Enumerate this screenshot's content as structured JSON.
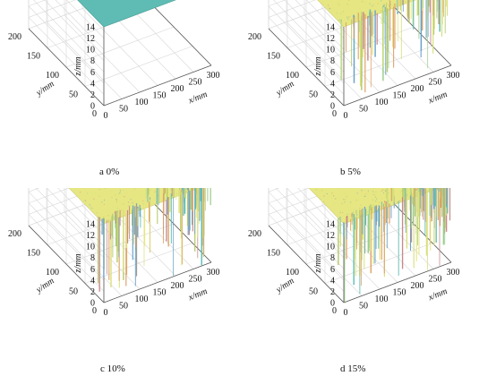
{
  "figure": {
    "panels": [
      {
        "caption": "a 0%"
      },
      {
        "caption": "b 5%"
      },
      {
        "caption": "c 10%"
      },
      {
        "caption": "d 15%"
      }
    ]
  },
  "chart_data": [
    {
      "type": "surface3d",
      "porosity_percent": 0,
      "xlabel": "x/mm",
      "ylabel": "y/mm",
      "zlabel": "z/mm",
      "xlim": [
        0,
        300
      ],
      "ylim": [
        0,
        200
      ],
      "zlim": [
        0,
        14
      ],
      "xticks": [
        "0",
        "50",
        "100",
        "150",
        "200",
        "250",
        "300"
      ],
      "yticks": [
        "0",
        "50",
        "100",
        "150",
        "200"
      ],
      "zticks": [
        "0",
        "2",
        "4",
        "6",
        "8",
        "10",
        "12",
        "14"
      ],
      "surface_height": 14,
      "roughness_depth_max": 0,
      "surface_color": "#5fbcb4"
    },
    {
      "type": "surface3d",
      "porosity_percent": 5,
      "xlabel": "x/mm",
      "ylabel": "y/mm",
      "zlabel": "z/mm",
      "xlim": [
        0,
        300
      ],
      "ylim": [
        0,
        200
      ],
      "zlim": [
        0,
        14
      ],
      "xticks": [
        "0",
        "50",
        "100",
        "150",
        "200",
        "250",
        "300"
      ],
      "yticks": [
        "0",
        "50",
        "100",
        "150",
        "200"
      ],
      "zticks": [
        "0",
        "2",
        "4",
        "6",
        "8",
        "10",
        "12",
        "14"
      ],
      "surface_height": 14,
      "roughness_depth_max": 12,
      "surface_color": "#e6e683"
    },
    {
      "type": "surface3d",
      "porosity_percent": 10,
      "xlabel": "x/mm",
      "ylabel": "y/mm",
      "zlabel": "z/mm",
      "xlim": [
        0,
        300
      ],
      "ylim": [
        0,
        200
      ],
      "zlim": [
        0,
        14
      ],
      "xticks": [
        "0",
        "50",
        "100",
        "150",
        "200",
        "250",
        "300"
      ],
      "yticks": [
        "0",
        "50",
        "100",
        "150",
        "200"
      ],
      "zticks": [
        "0",
        "2",
        "4",
        "6",
        "8",
        "10",
        "12",
        "14"
      ],
      "surface_height": 14,
      "roughness_depth_max": 13,
      "surface_color": "#e6e683"
    },
    {
      "type": "surface3d",
      "porosity_percent": 15,
      "xlabel": "x/mm",
      "ylabel": "y/mm",
      "zlabel": "z/mm",
      "xlim": [
        0,
        300
      ],
      "ylim": [
        0,
        200
      ],
      "zlim": [
        0,
        14
      ],
      "xticks": [
        "0",
        "50",
        "100",
        "150",
        "200",
        "250",
        "300"
      ],
      "yticks": [
        "0",
        "50",
        "100",
        "150",
        "200"
      ],
      "zticks": [
        "0",
        "2",
        "4",
        "6",
        "8",
        "10",
        "12",
        "14"
      ],
      "surface_height": 14,
      "roughness_depth_max": 13,
      "surface_color": "#e6e683"
    }
  ]
}
